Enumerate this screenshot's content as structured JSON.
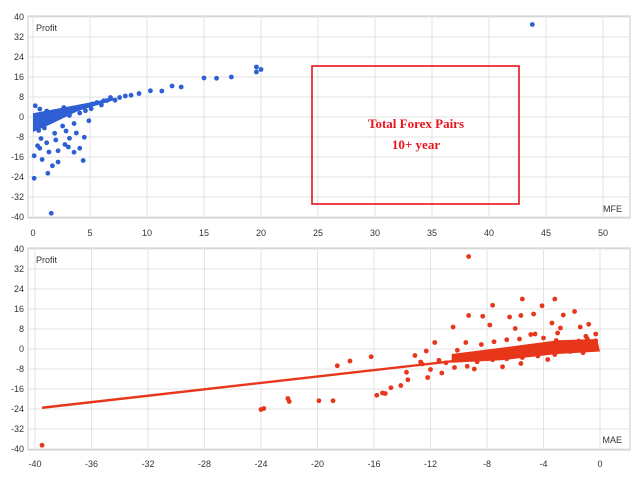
{
  "chart_data": [
    {
      "type": "scatter",
      "ylabel": "Profit",
      "xlabel": "MFE",
      "xlim": [
        0,
        50
      ],
      "ylim": [
        -40,
        40
      ],
      "x_ticks": [
        0,
        5,
        10,
        15,
        20,
        25,
        30,
        35,
        40,
        45,
        50
      ],
      "y_ticks": [
        40,
        32,
        24,
        16,
        8,
        0,
        -8,
        -16,
        -24,
        -32,
        -40
      ],
      "grid": true,
      "marker_color": "#2e5fd3",
      "annotation": {
        "lines": [
          "Total Forex Pairs",
          "10+ year"
        ],
        "color": "#e8141b"
      },
      "series": [
        {
          "points": [
            [
              43.8,
              37
            ],
            [
              20,
              19
            ],
            [
              19.6,
              20
            ],
            [
              19.6,
              18
            ],
            [
              17.4,
              16
            ],
            [
              16.1,
              15.5
            ],
            [
              15,
              15.6
            ],
            [
              13,
              12
            ],
            [
              12.2,
              12.4
            ],
            [
              11.3,
              10.4
            ],
            [
              10.3,
              10.5
            ],
            [
              9.3,
              9.4
            ],
            [
              8.6,
              8.7
            ],
            [
              8.1,
              8.4
            ],
            [
              7.6,
              7.8
            ],
            [
              7.2,
              6.7
            ],
            [
              6.8,
              7.8
            ],
            [
              6.5,
              6.6
            ],
            [
              6.2,
              6.5
            ],
            [
              5.6,
              5.8
            ],
            [
              5.2,
              5.2
            ],
            [
              4.8,
              4.7
            ],
            [
              4.3,
              4.2
            ],
            [
              3.9,
              3.8
            ],
            [
              3.4,
              3.2
            ],
            [
              3.0,
              2.7
            ],
            [
              2.5,
              2.2
            ],
            [
              2.1,
              1.6
            ],
            [
              1.6,
              1.1
            ],
            [
              1.1,
              0.4
            ],
            [
              0.6,
              -0.2
            ],
            [
              0.3,
              -1.3
            ],
            [
              0.8,
              -3.4
            ],
            [
              1.5,
              -1.6
            ],
            [
              2.3,
              0.1
            ],
            [
              3.2,
              0.6
            ],
            [
              4.1,
              1.6
            ],
            [
              5.1,
              3.3
            ],
            [
              6.0,
              4.8
            ],
            [
              4.9,
              -1.5
            ],
            [
              3.6,
              -2.6
            ],
            [
              2.6,
              -3.6
            ],
            [
              1.9,
              -6.5
            ],
            [
              0.7,
              -8.6
            ],
            [
              0.4,
              -11.5
            ],
            [
              1.2,
              -10.3
            ],
            [
              2.0,
              -9.2
            ],
            [
              2.8,
              -11.0
            ],
            [
              0.1,
              -15.5
            ],
            [
              0.8,
              -17.0
            ],
            [
              1.4,
              -14.0
            ],
            [
              2.2,
              -13.5
            ],
            [
              3.1,
              -12.0
            ],
            [
              3.6,
              -14.1
            ],
            [
              4.1,
              -12.5
            ],
            [
              2.2,
              -18.0
            ],
            [
              1.3,
              -22.5
            ],
            [
              0.1,
              -24.5
            ],
            [
              1.6,
              -38.5
            ],
            [
              4.4,
              -17.4
            ],
            [
              0.5,
              -5.4
            ],
            [
              1.0,
              -4.4
            ],
            [
              2.9,
              -5.6
            ],
            [
              3.8,
              -6.4
            ],
            [
              4.5,
              -8.1
            ],
            [
              0.2,
              4.5
            ],
            [
              0.6,
              3.2
            ],
            [
              1.2,
              2.4
            ],
            [
              2.7,
              3.8
            ],
            [
              4.6,
              2.5
            ],
            [
              3.2,
              -8.5
            ],
            [
              1.7,
              -19.5
            ],
            [
              0.6,
              -12.5
            ]
          ]
        }
      ]
    },
    {
      "type": "scatter",
      "ylabel": "Profit",
      "xlabel": "MAE",
      "xlim": [
        -40,
        0
      ],
      "ylim": [
        -40,
        40
      ],
      "x_ticks": [
        -40,
        -36,
        -32,
        -28,
        -24,
        -20,
        -16,
        -12,
        -8,
        -4,
        0
      ],
      "y_ticks": [
        40,
        32,
        24,
        16,
        8,
        0,
        -8,
        -16,
        -24,
        -32,
        -40
      ],
      "grid": true,
      "marker_color": "#e8361b",
      "trendline": {
        "x": [
          -39.5,
          -0.5
        ],
        "y": [
          -23.5,
          1.5
        ],
        "color": "#e8361b"
      },
      "series": [
        {
          "points": [
            [
              -39.5,
              -38.5
            ],
            [
              -9.3,
              37
            ],
            [
              -24.0,
              -24.2
            ],
            [
              -23.8,
              -23.8
            ],
            [
              -22.1,
              -19.8
            ],
            [
              -22.0,
              -21.0
            ],
            [
              -19.9,
              -20.7
            ],
            [
              -18.9,
              -20.7
            ],
            [
              -18.6,
              -6.7
            ],
            [
              -17.7,
              -4.8
            ],
            [
              -16.2,
              -3.1
            ],
            [
              -15.8,
              -18.5
            ],
            [
              -15.4,
              -17.6
            ],
            [
              -15.2,
              -17.8
            ],
            [
              -14.8,
              -15.5
            ],
            [
              -14.1,
              -14.6
            ],
            [
              -13.6,
              -12.3
            ],
            [
              -12.6,
              -6.0
            ],
            [
              -12.2,
              -11.4
            ],
            [
              -11.4,
              -4.5
            ],
            [
              -11.7,
              2.6
            ],
            [
              -10.4,
              8.8
            ],
            [
              -9.8,
              -2.9
            ],
            [
              -9.1,
              -4.1
            ],
            [
              -8.3,
              -3.2
            ],
            [
              -7.6,
              -2.4
            ],
            [
              -6.8,
              -1.5
            ],
            [
              -5.9,
              -1.2
            ],
            [
              -5.1,
              -0.6
            ],
            [
              -4.2,
              0.2
            ],
            [
              -3.4,
              0.3
            ],
            [
              -2.6,
              0.6
            ],
            [
              -1.8,
              0.9
            ],
            [
              -1.1,
              1.2
            ],
            [
              -0.5,
              1.4
            ],
            [
              -0.3,
              3.3
            ],
            [
              -0.9,
              4.1
            ],
            [
              -1.5,
              3.2
            ],
            [
              -2.3,
              2.6
            ],
            [
              -3.1,
              3.4
            ],
            [
              -4.0,
              4.4
            ],
            [
              -4.9,
              5.8
            ],
            [
              -5.7,
              4.0
            ],
            [
              -6.6,
              3.7
            ],
            [
              -7.5,
              2.9
            ],
            [
              -8.4,
              1.8
            ],
            [
              -9.5,
              2.6
            ],
            [
              -10.1,
              -0.5
            ],
            [
              -1.2,
              -1.5
            ],
            [
              -2.1,
              -1.0
            ],
            [
              -3.2,
              -2.2
            ],
            [
              -4.4,
              -2.8
            ],
            [
              -5.5,
              -3.4
            ],
            [
              -6.6,
              -3.9
            ],
            [
              -7.6,
              -4.3
            ],
            [
              -8.7,
              -5.1
            ],
            [
              -10.9,
              -5.5
            ],
            [
              -12.7,
              -5.2
            ],
            [
              -12.3,
              -0.8
            ],
            [
              -13.1,
              -2.6
            ],
            [
              -7.6,
              17.5
            ],
            [
              -7.8,
              9.6
            ],
            [
              -9.3,
              13.4
            ],
            [
              -8.3,
              13.1
            ],
            [
              -6.4,
              12.8
            ],
            [
              -5.6,
              13.4
            ],
            [
              -4.7,
              14.0
            ],
            [
              -4.1,
              17.3
            ],
            [
              -5.5,
              20.0
            ],
            [
              -3.4,
              10.4
            ],
            [
              -2.6,
              13.6
            ],
            [
              -1.8,
              15.0
            ],
            [
              -3.2,
              20.0
            ],
            [
              -2.8,
              8.4
            ],
            [
              -1.4,
              8.8
            ],
            [
              -0.8,
              9.9
            ],
            [
              -0.3,
              6.0
            ],
            [
              -6.0,
              8.2
            ],
            [
              -4.6,
              6.0
            ],
            [
              -3.0,
              6.4
            ],
            [
              -1.0,
              5.1
            ],
            [
              -12.0,
              -8.2
            ],
            [
              -13.7,
              -9.3
            ],
            [
              -11.2,
              -9.6
            ],
            [
              -10.3,
              -7.4
            ],
            [
              -9.4,
              -6.9
            ],
            [
              -8.9,
              -8.0
            ],
            [
              -6.9,
              -7.1
            ],
            [
              -5.6,
              -5.8
            ],
            [
              -3.7,
              -4.2
            ]
          ]
        }
      ]
    }
  ]
}
